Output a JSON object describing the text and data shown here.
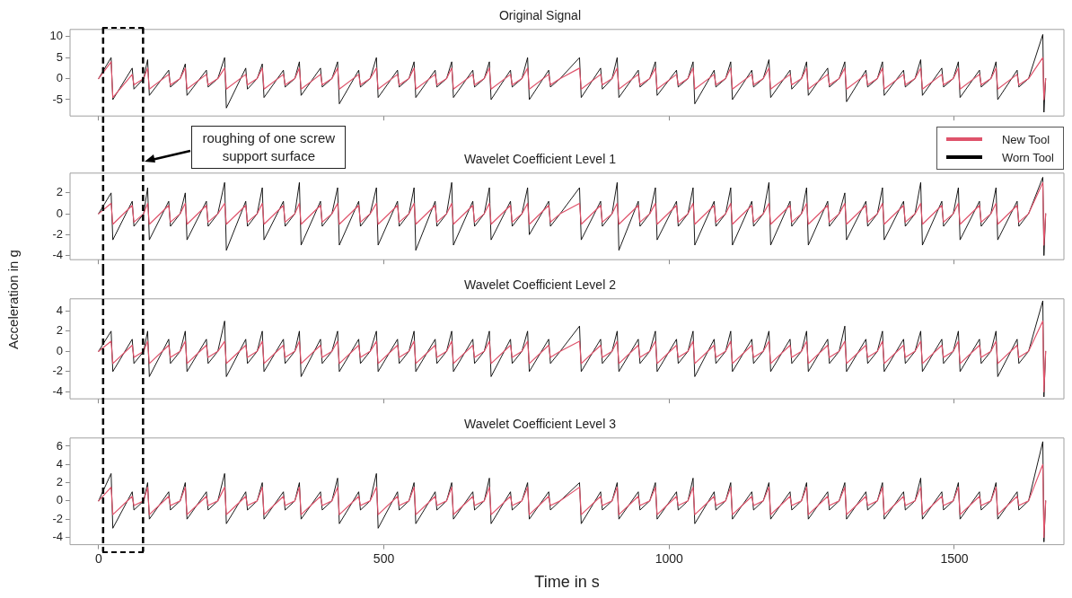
{
  "chart_data": [
    {
      "type": "line",
      "title": "Original Signal",
      "xlim": [
        -50,
        1692
      ],
      "xticks": [
        0,
        500,
        1000,
        1500
      ],
      "ylim": [
        -8.9,
        11.7
      ],
      "yticks": [
        -5,
        0,
        5,
        10
      ],
      "tick_labels": "y",
      "ref_lines": [
        {
          "axis": "x",
          "value": 8,
          "color": "#000000",
          "line_style": "dashed"
        },
        {
          "axis": "x",
          "value": 78,
          "label": "roughing of one screw support surface",
          "color": "#000000",
          "line_style": "dashed"
        }
      ],
      "x": [
        0,
        22,
        25,
        59,
        62,
        79,
        86,
        89,
        123,
        126,
        143,
        152,
        155,
        189,
        192,
        209,
        221,
        224,
        258,
        261,
        278,
        287,
        290,
        324,
        327,
        344,
        352,
        355,
        389,
        392,
        409,
        419,
        422,
        456,
        459,
        476,
        487,
        490,
        524,
        527,
        544,
        553,
        556,
        590,
        593,
        610,
        619,
        622,
        656,
        659,
        676,
        685,
        688,
        722,
        725,
        742,
        752,
        755,
        789,
        792,
        809,
        843,
        846,
        880,
        883,
        900,
        909,
        912,
        946,
        949,
        966,
        976,
        979,
        1013,
        1016,
        1033,
        1042,
        1045,
        1079,
        1082,
        1099,
        1108,
        1111,
        1145,
        1148,
        1165,
        1175,
        1178,
        1212,
        1215,
        1232,
        1241,
        1244,
        1278,
        1281,
        1298,
        1308,
        1311,
        1345,
        1348,
        1365,
        1374,
        1377,
        1411,
        1414,
        1431,
        1441,
        1444,
        1478,
        1481,
        1498,
        1507,
        1510,
        1544,
        1547,
        1564,
        1573,
        1576,
        1610,
        1613,
        1630,
        1655,
        1657,
        1660
      ],
      "series": [
        {
          "color": "#df536b",
          "values": [
            0,
            4,
            -4.5,
            1,
            -1.5,
            0,
            2.5,
            -2.5,
            1,
            -1.5,
            0,
            2.5,
            -2.5,
            1,
            -1.5,
            0,
            2.5,
            -2.5,
            1,
            -1.5,
            0,
            2.5,
            -2.5,
            1,
            -1.5,
            0,
            2.5,
            -2.5,
            1,
            -1.5,
            0,
            2.5,
            -2.5,
            1,
            -1.5,
            0,
            2.5,
            -2.5,
            1,
            -1.5,
            0,
            2.5,
            -2.5,
            1,
            -1.5,
            0,
            2.5,
            -2.5,
            1,
            -1.5,
            0,
            2.5,
            -2.5,
            1,
            -1.5,
            0,
            2.5,
            -2.5,
            1,
            -1.5,
            0,
            2.5,
            -2.5,
            1,
            -1.5,
            0,
            2.5,
            -2.5,
            1,
            -1.5,
            0,
            2.5,
            -2.5,
            1,
            -1.5,
            0,
            2.5,
            -2.5,
            1,
            -1.5,
            0,
            2.5,
            -2.5,
            1,
            -1.5,
            0,
            2.5,
            -2.5,
            1,
            -1.5,
            0,
            2.5,
            -2.5,
            1,
            -1.5,
            0,
            2.5,
            -2.5,
            1,
            -1.5,
            0,
            2.5,
            -2.5,
            1,
            -1.5,
            0,
            2.5,
            -2.5,
            1,
            -1.5,
            0,
            2.5,
            -2.5,
            1,
            -1.5,
            0,
            2.5,
            -2.5,
            1,
            -1.5,
            0,
            5,
            -5,
            0
          ]
        },
        {
          "color": "#000000",
          "values": [
            0,
            5,
            -5,
            2.5,
            -2.5,
            0,
            4.5,
            -4,
            2,
            -2,
            0,
            3.5,
            -4,
            2,
            -2,
            0,
            5,
            -7,
            2.5,
            -2.5,
            0,
            3.5,
            -4.5,
            2,
            -2,
            0,
            4,
            -4,
            2.5,
            -2,
            0,
            4,
            -6,
            2,
            -2,
            0,
            5,
            -4.5,
            2,
            -2,
            0,
            4,
            -4.5,
            2,
            -2,
            0,
            4,
            -4.5,
            2,
            -2,
            0,
            4,
            -5,
            2,
            -2,
            0,
            5,
            -5,
            2,
            -2,
            0,
            5,
            -4.5,
            2.5,
            -2.5,
            0,
            5,
            -4.5,
            2,
            -2,
            0,
            4,
            -4,
            2,
            -2,
            0,
            4,
            -6,
            2,
            -2,
            0,
            4,
            -5,
            2,
            -2,
            0,
            4.5,
            -4.5,
            2,
            -2.5,
            0,
            4,
            -4,
            2.5,
            -2,
            0,
            4,
            -5.5,
            2,
            -2,
            0,
            4,
            -4,
            2,
            -2,
            0,
            4.5,
            -4,
            2.5,
            -2,
            0,
            4,
            -4.5,
            2,
            -2,
            0,
            4,
            -5,
            2,
            -2,
            0,
            10.5,
            -8,
            0
          ]
        }
      ]
    },
    {
      "type": "line",
      "title": "Wavelet Coefficient Level 1",
      "xlim": [
        -50,
        1692
      ],
      "xticks": [
        0,
        500,
        1000,
        1500
      ],
      "ylim": [
        -4.4,
        3.9
      ],
      "yticks": [
        -4,
        -2,
        0,
        2
      ],
      "tick_labels": "y",
      "legend": "top right",
      "ylabel": "Acceleration in g",
      "ref_lines": [
        {
          "axis": "x",
          "value": 8,
          "color": "#000000",
          "line_style": "dashed"
        },
        {
          "axis": "x",
          "value": 78,
          "color": "#000000",
          "line_style": "dashed"
        }
      ],
      "x": [
        0,
        22,
        25,
        59,
        62,
        79,
        86,
        89,
        123,
        126,
        143,
        152,
        155,
        189,
        192,
        209,
        221,
        224,
        258,
        261,
        278,
        287,
        290,
        324,
        327,
        344,
        352,
        355,
        389,
        392,
        409,
        419,
        422,
        456,
        459,
        476,
        487,
        490,
        524,
        527,
        544,
        553,
        556,
        590,
        593,
        610,
        619,
        622,
        656,
        659,
        676,
        685,
        688,
        722,
        725,
        742,
        752,
        755,
        789,
        792,
        809,
        843,
        846,
        880,
        883,
        900,
        909,
        912,
        946,
        949,
        966,
        976,
        979,
        1013,
        1016,
        1033,
        1042,
        1045,
        1079,
        1082,
        1099,
        1108,
        1111,
        1145,
        1148,
        1165,
        1175,
        1178,
        1212,
        1215,
        1232,
        1241,
        1244,
        1278,
        1281,
        1298,
        1308,
        1311,
        1345,
        1348,
        1365,
        1374,
        1377,
        1411,
        1414,
        1431,
        1441,
        1444,
        1478,
        1481,
        1498,
        1507,
        1510,
        1544,
        1547,
        1564,
        1573,
        1576,
        1610,
        1613,
        1630,
        1655,
        1657,
        1660
      ],
      "series": [
        {
          "name": "New Tool",
          "color": "#df536b",
          "values": [
            0,
            1,
            -1,
            0.8,
            -0.8,
            0,
            1,
            -1,
            0.8,
            -0.8,
            0,
            1,
            -1,
            0.8,
            -0.8,
            0,
            1,
            -1,
            0.8,
            -0.8,
            0,
            1,
            -1,
            0.8,
            -0.8,
            0,
            1,
            -1,
            0.8,
            -0.8,
            0,
            1,
            -1,
            0.8,
            -0.8,
            0,
            1,
            -1,
            0.8,
            -0.8,
            0,
            1,
            -1,
            0.8,
            -0.8,
            0,
            1,
            -1,
            0.8,
            -0.8,
            0,
            1,
            -1,
            0.8,
            -0.8,
            0,
            1,
            -1,
            0.8,
            -0.8,
            0,
            1,
            -1,
            0.8,
            -0.8,
            0,
            1,
            -1,
            0.8,
            -0.8,
            0,
            1,
            -1,
            0.8,
            -0.8,
            0,
            1,
            -1,
            0.8,
            -0.8,
            0,
            1,
            -1,
            0.8,
            -0.8,
            0,
            1,
            -1,
            0.8,
            -0.8,
            0,
            1,
            -1,
            0.8,
            -0.8,
            0,
            1,
            -1,
            0.8,
            -0.8,
            0,
            1,
            -1,
            0.8,
            -0.8,
            0,
            1,
            -1,
            0.8,
            -0.8,
            0,
            1,
            -1,
            0.8,
            -0.8,
            0,
            1,
            -1,
            0.8,
            -0.8,
            0,
            3,
            -3,
            0
          ]
        },
        {
          "name": "Worn Tool",
          "color": "#000000",
          "values": [
            0,
            2,
            -2.5,
            1.2,
            -1.2,
            0,
            2.5,
            -2.5,
            1.2,
            -1.2,
            0,
            2,
            -2.5,
            1.2,
            -1.2,
            0,
            3,
            -3.5,
            1.2,
            -1.2,
            0,
            2.5,
            -2.5,
            1.2,
            -1.2,
            0,
            3,
            -3,
            1.2,
            -1.2,
            0,
            2.5,
            -3,
            1.2,
            -1.2,
            0,
            2.5,
            -3,
            1.2,
            -1.2,
            0,
            2.5,
            -3.5,
            1.2,
            -1.2,
            0,
            3,
            -3,
            1.2,
            -1.2,
            0,
            2.5,
            -2.5,
            1.2,
            -1.2,
            0,
            2.5,
            -2,
            1.2,
            -1.2,
            0,
            2.5,
            -2.5,
            1.2,
            -1.2,
            0,
            3,
            -3.5,
            1.2,
            -1.2,
            0,
            2.5,
            -2.5,
            1.2,
            -1.2,
            0,
            2.5,
            -3,
            1.2,
            -1.2,
            0,
            2.5,
            -3,
            1.2,
            -1.2,
            0,
            3,
            -3,
            1.2,
            -1.2,
            0,
            2.5,
            -3,
            1.2,
            -1.2,
            0,
            2,
            -2.5,
            1.2,
            -1.2,
            0,
            2.5,
            -2.5,
            1.2,
            -1.2,
            0,
            3,
            -3,
            1.2,
            -1.2,
            0,
            2.5,
            -2.5,
            1.2,
            -1.2,
            0,
            2.5,
            -2.5,
            1.2,
            -1.2,
            0,
            3.5,
            -4,
            0
          ]
        }
      ]
    },
    {
      "type": "line",
      "title": "Wavelet Coefficient Level 2",
      "xlim": [
        -50,
        1692
      ],
      "xticks": [
        0,
        500,
        1000,
        1500
      ],
      "ylim": [
        -4.7,
        5.2
      ],
      "yticks": [
        -4,
        -2,
        0,
        2,
        4
      ],
      "tick_labels": "y",
      "ref_lines": [
        {
          "axis": "x",
          "value": 8,
          "color": "#000000",
          "line_style": "dashed"
        },
        {
          "axis": "x",
          "value": 78,
          "color": "#000000",
          "line_style": "dashed"
        }
      ],
      "x": [
        0,
        22,
        25,
        59,
        62,
        79,
        86,
        89,
        123,
        126,
        143,
        152,
        155,
        189,
        192,
        209,
        221,
        224,
        258,
        261,
        278,
        287,
        290,
        324,
        327,
        344,
        352,
        355,
        389,
        392,
        409,
        419,
        422,
        456,
        459,
        476,
        487,
        490,
        524,
        527,
        544,
        553,
        556,
        590,
        593,
        610,
        619,
        622,
        656,
        659,
        676,
        685,
        688,
        722,
        725,
        742,
        752,
        755,
        789,
        792,
        809,
        843,
        846,
        880,
        883,
        900,
        909,
        912,
        946,
        949,
        966,
        976,
        979,
        1013,
        1016,
        1033,
        1042,
        1045,
        1079,
        1082,
        1099,
        1108,
        1111,
        1145,
        1148,
        1165,
        1175,
        1178,
        1212,
        1215,
        1232,
        1241,
        1244,
        1278,
        1281,
        1298,
        1308,
        1311,
        1345,
        1348,
        1365,
        1374,
        1377,
        1411,
        1414,
        1431,
        1441,
        1444,
        1478,
        1481,
        1498,
        1507,
        1510,
        1544,
        1547,
        1564,
        1573,
        1576,
        1610,
        1613,
        1630,
        1655,
        1657,
        1660
      ],
      "series": [
        {
          "color": "#df536b",
          "values": [
            0,
            1,
            -1.2,
            0.6,
            -0.6,
            0,
            1,
            -1.2,
            0.6,
            -0.6,
            0,
            1,
            -1.2,
            0.6,
            -0.6,
            0,
            1,
            -1.2,
            0.6,
            -0.6,
            0,
            1,
            -1.2,
            0.6,
            -0.6,
            0,
            1,
            -1.2,
            0.6,
            -0.6,
            0,
            1,
            -1.2,
            0.6,
            -0.6,
            0,
            1,
            -1.2,
            0.6,
            -0.6,
            0,
            1,
            -1.2,
            0.6,
            -0.6,
            0,
            1,
            -1.2,
            0.6,
            -0.6,
            0,
            1,
            -1.2,
            0.6,
            -0.6,
            0,
            1,
            -1.2,
            0.6,
            -0.6,
            0,
            1,
            -1.2,
            0.6,
            -0.6,
            0,
            1,
            -1.2,
            0.6,
            -0.6,
            0,
            1,
            -1.2,
            0.6,
            -0.6,
            0,
            1,
            -1.2,
            0.6,
            -0.6,
            0,
            1,
            -1.2,
            0.6,
            -0.6,
            0,
            1,
            -1.2,
            0.6,
            -0.6,
            0,
            1,
            -1.2,
            0.6,
            -0.6,
            0,
            1,
            -1.2,
            0.6,
            -0.6,
            0,
            1,
            -1.2,
            0.6,
            -0.6,
            0,
            1,
            -1.2,
            0.6,
            -0.6,
            0,
            1,
            -1.2,
            0.6,
            -0.6,
            0,
            1,
            -1.2,
            0.6,
            -0.6,
            0,
            3,
            -4,
            0
          ]
        },
        {
          "color": "#000000",
          "values": [
            0,
            2,
            -2,
            1.2,
            -1.2,
            0,
            2,
            -2.5,
            1.2,
            -1.2,
            0,
            2,
            -2,
            1.2,
            -1.2,
            0,
            3,
            -2.5,
            1.2,
            -1.2,
            0,
            2,
            -2,
            1.2,
            -1.2,
            0,
            2,
            -2.5,
            1.2,
            -1.2,
            0,
            2,
            -2,
            1.2,
            -1.2,
            0,
            2,
            -2,
            1.2,
            -1.2,
            0,
            2,
            -2,
            1.2,
            -1.2,
            0,
            2,
            -2,
            1.2,
            -1.2,
            0,
            2,
            -2.5,
            1.2,
            -1.2,
            0,
            2,
            -2,
            1.2,
            -1.2,
            0,
            2.5,
            -2,
            1.2,
            -1.2,
            0,
            2,
            -2,
            1.2,
            -1.2,
            0,
            2,
            -2,
            1.2,
            -1.2,
            0,
            2,
            -2.5,
            1.2,
            -1.2,
            0,
            2,
            -2,
            1.2,
            -1.2,
            0,
            2,
            -2,
            1.2,
            -1.2,
            0,
            2,
            -2,
            1.2,
            -1.2,
            0,
            2.5,
            -2,
            1.2,
            -1.2,
            0,
            2,
            -2,
            1.2,
            -1.2,
            0,
            2,
            -2,
            1.2,
            -1.2,
            0,
            2,
            -2,
            1.2,
            -1.2,
            0,
            2,
            -2.5,
            1.2,
            -1.2,
            0,
            5,
            -4.5,
            0
          ]
        }
      ]
    },
    {
      "type": "line",
      "title": "Wavelet Coefficient Level 3",
      "xlabel": "Time in s",
      "xlim": [
        -50,
        1692
      ],
      "xticks": [
        0,
        500,
        1000,
        1500
      ],
      "ylim": [
        -4.8,
        6.9
      ],
      "yticks": [
        -4,
        -2,
        0,
        2,
        4,
        6
      ],
      "ref_lines": [
        {
          "axis": "x",
          "value": 8,
          "color": "#000000",
          "line_style": "dashed"
        },
        {
          "axis": "x",
          "value": 78,
          "color": "#000000",
          "line_style": "dashed"
        }
      ],
      "x": [
        0,
        22,
        25,
        59,
        62,
        79,
        86,
        89,
        123,
        126,
        143,
        152,
        155,
        189,
        192,
        209,
        221,
        224,
        258,
        261,
        278,
        287,
        290,
        324,
        327,
        344,
        352,
        355,
        389,
        392,
        409,
        419,
        422,
        456,
        459,
        476,
        487,
        490,
        524,
        527,
        544,
        553,
        556,
        590,
        593,
        610,
        619,
        622,
        656,
        659,
        676,
        685,
        688,
        722,
        725,
        742,
        752,
        755,
        789,
        792,
        809,
        843,
        846,
        880,
        883,
        900,
        909,
        912,
        946,
        949,
        966,
        976,
        979,
        1013,
        1016,
        1033,
        1042,
        1045,
        1079,
        1082,
        1099,
        1108,
        1111,
        1145,
        1148,
        1165,
        1175,
        1178,
        1212,
        1215,
        1232,
        1241,
        1244,
        1278,
        1281,
        1298,
        1308,
        1311,
        1345,
        1348,
        1365,
        1374,
        1377,
        1411,
        1414,
        1431,
        1441,
        1444,
        1478,
        1481,
        1498,
        1507,
        1510,
        1544,
        1547,
        1564,
        1573,
        1576,
        1610,
        1613,
        1630,
        1655,
        1657,
        1660
      ],
      "series": [
        {
          "color": "#df536b",
          "values": [
            0,
            1.5,
            -1.5,
            0.5,
            -0.5,
            0,
            1.5,
            -1.5,
            0.5,
            -0.5,
            0,
            1.5,
            -1.5,
            0.5,
            -0.5,
            0,
            1.5,
            -1.5,
            0.5,
            -0.5,
            0,
            1.5,
            -1.5,
            0.5,
            -0.5,
            0,
            1.5,
            -1.5,
            0.5,
            -0.5,
            0,
            1.5,
            -1.5,
            0.5,
            -0.5,
            0,
            1.5,
            -1.5,
            0.5,
            -0.5,
            0,
            1.5,
            -1.5,
            0.5,
            -0.5,
            0,
            1.5,
            -1.5,
            0.5,
            -0.5,
            0,
            1.5,
            -1.5,
            0.5,
            -0.5,
            0,
            1.5,
            -1.5,
            0.5,
            -0.5,
            0,
            1.5,
            -1.5,
            0.5,
            -0.5,
            0,
            1.5,
            -1.5,
            0.5,
            -0.5,
            0,
            1.5,
            -1.5,
            0.5,
            -0.5,
            0,
            1.5,
            -1.5,
            0.5,
            -0.5,
            0,
            1.5,
            -1.5,
            0.5,
            -0.5,
            0,
            1.5,
            -1.5,
            0.5,
            -0.5,
            0,
            1.5,
            -1.5,
            0.5,
            -0.5,
            0,
            1.5,
            -1.5,
            0.5,
            -0.5,
            0,
            1.5,
            -1.5,
            0.5,
            -0.5,
            0,
            1.5,
            -1.5,
            0.5,
            -0.5,
            0,
            1.5,
            -1.5,
            0.5,
            -0.5,
            0,
            1.5,
            -1.5,
            0.5,
            -0.5,
            0,
            4,
            -4,
            0
          ]
        },
        {
          "color": "#000000",
          "values": [
            0,
            3,
            -3,
            1,
            -1,
            0,
            2,
            -2,
            1,
            -1,
            0,
            2,
            -2,
            1,
            -1,
            0,
            3,
            -2.5,
            1,
            -1,
            0,
            2,
            -2,
            1,
            -1,
            0,
            2,
            -2,
            1,
            -1,
            0,
            2.5,
            -2.5,
            1,
            -1,
            0,
            3,
            -3,
            1,
            -1,
            0,
            2,
            -2.5,
            1,
            -1,
            0,
            2,
            -2,
            1,
            -1,
            0,
            2.5,
            -2.5,
            1,
            -1,
            0,
            2,
            -2,
            1,
            -1,
            0,
            2,
            -2.5,
            1,
            -1,
            0,
            2,
            -2,
            1,
            -1,
            0,
            2,
            -2,
            1,
            -1,
            0,
            2.5,
            -2.5,
            1,
            -1,
            0,
            2,
            -2,
            1,
            -1,
            0,
            2,
            -2,
            1,
            -1,
            0,
            2,
            -2,
            1,
            -1,
            0,
            2,
            -2,
            1,
            -1,
            0,
            2,
            -2,
            1,
            -1,
            0,
            2.5,
            -2,
            1,
            -1,
            0,
            2,
            -2,
            1,
            -1,
            0,
            2,
            -2,
            1,
            -1,
            0,
            6.5,
            -4.5,
            0
          ]
        }
      ]
    }
  ]
}
